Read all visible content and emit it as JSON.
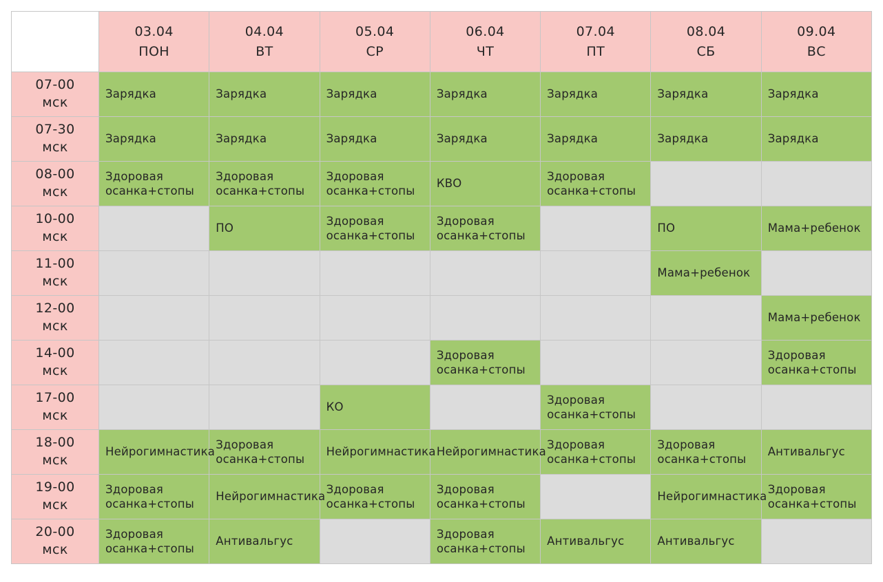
{
  "colors": {
    "header_pink": "#f9c8c5",
    "filled_green": "#a2c96f",
    "empty_gray": "#dcdcdc",
    "grid_line": "#c6c6c6",
    "text": "#262626",
    "page_bg": "#ffffff"
  },
  "table": {
    "time_suffix": "мск",
    "days": [
      {
        "date": "03.04",
        "label": "ПОН"
      },
      {
        "date": "04.04",
        "label": "ВТ"
      },
      {
        "date": "05.04",
        "label": "СР"
      },
      {
        "date": "06.04",
        "label": "ЧТ"
      },
      {
        "date": "07.04",
        "label": "ПТ"
      },
      {
        "date": "08.04",
        "label": "СБ"
      },
      {
        "date": "09.04",
        "label": "ВС"
      }
    ],
    "rows": [
      {
        "time": "07-00",
        "cells": [
          "Зарядка",
          "Зарядка",
          "Зарядка",
          "Зарядка",
          "Зарядка",
          "Зарядка",
          "Зарядка"
        ]
      },
      {
        "time": "07-30",
        "cells": [
          "Зарядка",
          "Зарядка",
          "Зарядка",
          "Зарядка",
          "Зарядка",
          "Зарядка",
          "Зарядка"
        ]
      },
      {
        "time": "08-00",
        "cells": [
          "Здоровая осанка+стопы",
          "Здоровая осанка+стопы",
          "Здоровая осанка+стопы",
          "КВО",
          "Здоровая осанка+стопы",
          "",
          ""
        ]
      },
      {
        "time": "10-00",
        "cells": [
          "",
          "ПО",
          "Здоровая осанка+стопы",
          "Здоровая осанка+стопы",
          "",
          "ПО",
          "Мама+ребенок"
        ]
      },
      {
        "time": "11-00",
        "cells": [
          "",
          "",
          "",
          "",
          "",
          "Мама+ребенок",
          ""
        ]
      },
      {
        "time": "12-00",
        "cells": [
          "",
          "",
          "",
          "",
          "",
          "",
          "Мама+ребенок"
        ]
      },
      {
        "time": "14-00",
        "cells": [
          "",
          "",
          "",
          "Здоровая осанка+стопы",
          "",
          "",
          "Здоровая осанка+стопы"
        ]
      },
      {
        "time": "17-00",
        "cells": [
          "",
          "",
          "КО",
          "",
          "Здоровая осанка+стопы",
          "",
          ""
        ]
      },
      {
        "time": "18-00",
        "cells": [
          "Нейрогимнастика",
          "Здоровая осанка+стопы",
          "Нейрогимнастика",
          "Нейрогимнастика",
          "Здоровая осанка+стопы",
          "Здоровая осанка+стопы",
          "Антивальгус"
        ]
      },
      {
        "time": "19-00",
        "cells": [
          "Здоровая осанка+стопы",
          "Нейрогимнастика",
          "Здоровая осанка+стопы",
          "Здоровая осанка+стопы",
          "",
          "Нейрогимнастика",
          "Здоровая осанка+стопы"
        ]
      },
      {
        "time": "20-00",
        "cells": [
          "Здоровая осанка+стопы",
          "Антивальгус",
          "",
          "Здоровая осанка+стопы",
          "Антивальгус",
          "Антивальгус",
          ""
        ]
      }
    ]
  }
}
